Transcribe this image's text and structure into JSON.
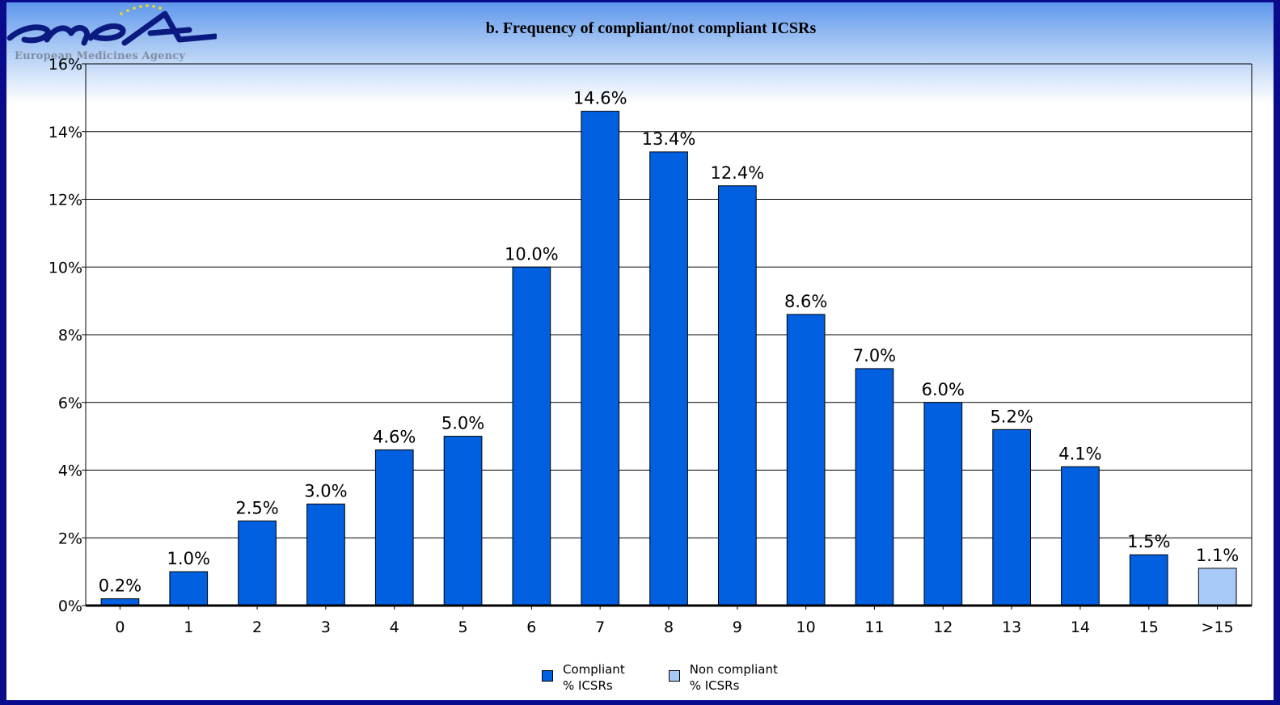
{
  "logo": {
    "wordmark": "emea",
    "caption": "European Medicines Agency"
  },
  "chart_data": {
    "type": "bar",
    "title": "b. Frequency of compliant/not compliant ICSRs",
    "xlabel": "",
    "ylabel": "",
    "ylim": [
      0,
      16
    ],
    "yticks": [
      "0%",
      "2%",
      "4%",
      "6%",
      "8%",
      "10%",
      "12%",
      "14%",
      "16%"
    ],
    "grid": true,
    "legend_position": "bottom",
    "categories": [
      "0",
      "1",
      "2",
      "3",
      "4",
      "5",
      "6",
      "7",
      "8",
      "9",
      "10",
      "11",
      "12",
      "13",
      "14",
      "15",
      ">15"
    ],
    "values": [
      0.2,
      1.0,
      2.5,
      3.0,
      4.6,
      5.0,
      10.0,
      14.6,
      13.4,
      12.4,
      8.6,
      7.0,
      6.0,
      5.2,
      4.1,
      1.5,
      1.1
    ],
    "value_labels": [
      "0.2%",
      "1.0%",
      "2.5%",
      "3.0%",
      "4.6%",
      "5.0%",
      "10.0%",
      "14.6%",
      "13.4%",
      "12.4%",
      "8.6%",
      "7.0%",
      "6.0%",
      "5.2%",
      "4.1%",
      "1.5%",
      "1.1%"
    ],
    "series_by_category": [
      "compliant",
      "compliant",
      "compliant",
      "compliant",
      "compliant",
      "compliant",
      "compliant",
      "compliant",
      "compliant",
      "compliant",
      "compliant",
      "compliant",
      "compliant",
      "compliant",
      "compliant",
      "compliant",
      "non_compliant"
    ],
    "legend": [
      {
        "key": "compliant",
        "line1": "Compliant",
        "line2": "% ICSRs",
        "color": "#0060e0"
      },
      {
        "key": "non_compliant",
        "line1": "Non compliant",
        "line2": "% ICSRs",
        "color": "#a8caf8"
      }
    ]
  }
}
